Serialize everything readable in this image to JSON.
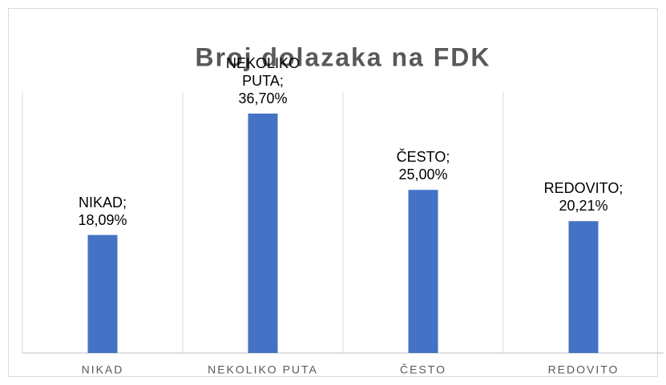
{
  "chart_data": {
    "type": "bar",
    "title": "Broj dolazaka na FDK",
    "categories": [
      "NIKAD",
      "NEKOLIKO PUTA",
      "ČESTO",
      "REDOVITO"
    ],
    "values": [
      18.09,
      36.7,
      25.0,
      20.21
    ],
    "value_labels": [
      "NIKAD; 18,09%",
      "NEKOLIKO PUTA; 36,70%",
      "ČESTO; 25,00%",
      "REDOVITO; 20,21%"
    ],
    "color": "#4472c4",
    "ylim": [
      0,
      40
    ]
  }
}
